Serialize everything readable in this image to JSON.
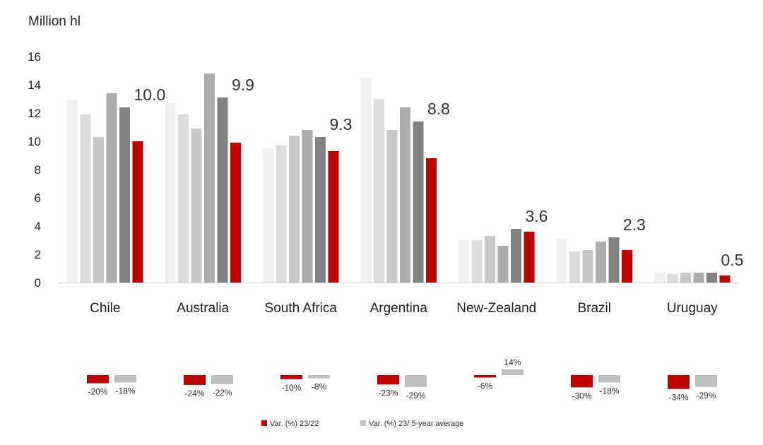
{
  "chart_data": {
    "type": "bar",
    "ylabel": "Million hl",
    "ylim": [
      0,
      16
    ],
    "yticks": [
      "0",
      "2",
      "4",
      "6",
      "8",
      "10",
      "12",
      "14",
      "16"
    ],
    "categories": [
      "Chile",
      "Australia",
      "South Africa",
      "Argentina",
      "New-Zealand",
      "Brazil",
      "Uruguay"
    ],
    "series_colors": [
      "#efefef",
      "#dcdcdc",
      "#c8c8c8",
      "#acacac",
      "#828282",
      "#c00000"
    ],
    "series": [
      {
        "values": [
          12.9,
          12.7,
          9.5,
          14.5,
          3.0,
          3.1,
          0.7
        ]
      },
      {
        "values": [
          11.9,
          11.9,
          9.7,
          13.0,
          3.0,
          2.2,
          0.6
        ]
      },
      {
        "values": [
          10.3,
          10.9,
          10.4,
          10.8,
          3.3,
          2.3,
          0.7
        ]
      },
      {
        "values": [
          13.4,
          14.8,
          10.8,
          12.4,
          2.6,
          2.9,
          0.7
        ]
      },
      {
        "values": [
          12.4,
          13.1,
          10.3,
          11.4,
          3.8,
          3.2,
          0.7
        ]
      },
      {
        "values": [
          10.0,
          9.9,
          9.3,
          8.8,
          3.6,
          2.3,
          0.5
        ]
      }
    ],
    "value_labels": [
      "10.0",
      "9.9",
      "9.3",
      "8.8",
      "3.6",
      "2.3",
      "0.5"
    ],
    "variation": {
      "yoy": [
        -20,
        -24,
        -10,
        -23,
        -6,
        -30,
        -34
      ],
      "yoy_labels": [
        "-20%",
        "-24%",
        "-10%",
        "-23%",
        "-6%",
        "-30%",
        "-34%"
      ],
      "avg": [
        -18,
        -22,
        -8,
        -29,
        14,
        -18,
        -29
      ],
      "avg_labels": [
        "-18%",
        "-22%",
        "-8%",
        "-29%",
        "14%",
        "-18%",
        "-29%"
      ],
      "yoy_color": "#c00000",
      "avg_color": "#bfbfbf"
    },
    "legend": [
      {
        "label": "Var. (%) 23/22",
        "color": "#c00000"
      },
      {
        "label": "Var. (%) 23/ 5-year average",
        "color": "#bfbfbf"
      }
    ],
    "grid": false,
    "legend_position": "bottom-center"
  }
}
